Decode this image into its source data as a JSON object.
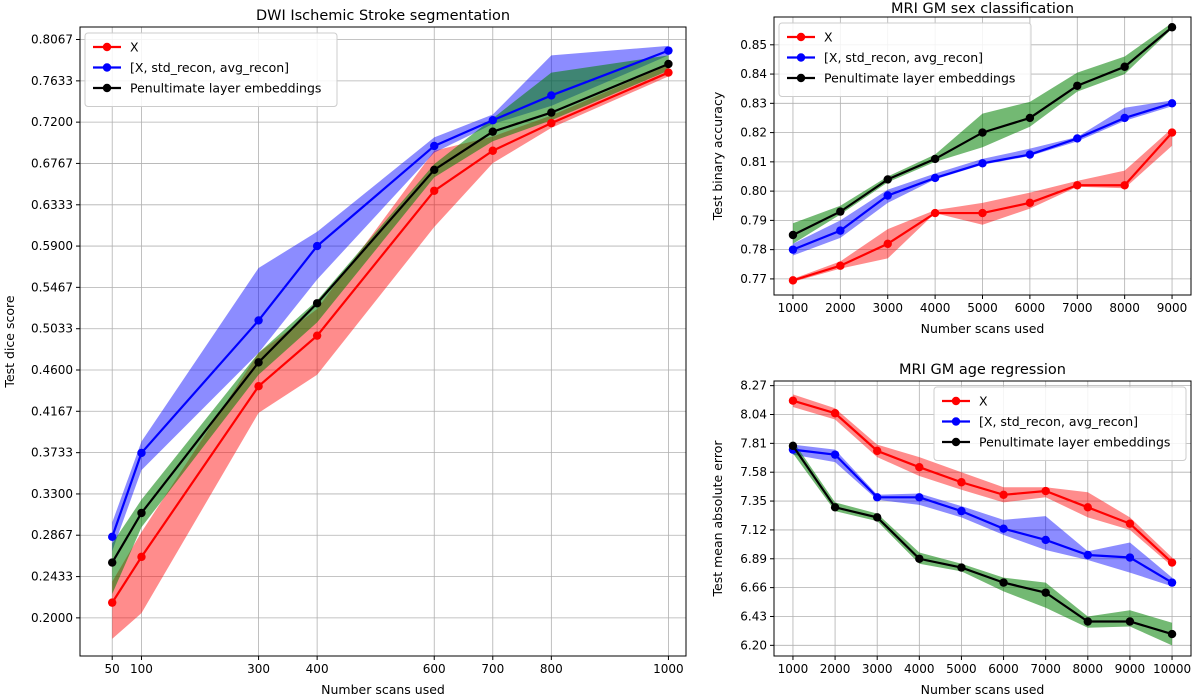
{
  "chart_data": [
    {
      "type": "line",
      "title": "DWI Ischemic Stroke segmentation",
      "xlabel": "Number scans used",
      "ylabel": "Test dice score",
      "x": [
        50,
        100,
        300,
        400,
        600,
        700,
        800,
        1000
      ],
      "xticks": [
        "50",
        "100",
        "300",
        "400",
        "600",
        "700",
        "800",
        "1000"
      ],
      "yticks": [
        "0.2000",
        "0.2433",
        "0.2867",
        "0.3300",
        "0.3733",
        "0.4167",
        "0.4600",
        "0.5033",
        "0.5467",
        "0.5900",
        "0.6333",
        "0.6767",
        "0.7200",
        "0.7633",
        "0.8067"
      ],
      "xlim": [
        -5,
        1030
      ],
      "ylim": [
        0.16,
        0.8198
      ],
      "grid": true,
      "legend_position": "top-left",
      "series": [
        {
          "name": "X",
          "color": "#ff0000",
          "values": [
            0.216,
            0.264,
            0.443,
            0.496,
            0.648,
            0.69,
            0.719,
            0.772
          ],
          "lower": [
            0.178,
            0.205,
            0.415,
            0.455,
            0.61,
            0.677,
            0.714,
            0.768
          ],
          "upper": [
            0.238,
            0.29,
            0.478,
            0.524,
            0.69,
            0.705,
            0.727,
            0.78
          ]
        },
        {
          "name": "[X, std_recon, avg_recon]",
          "color": "#0000ff",
          "values": [
            0.285,
            0.373,
            0.512,
            0.59,
            0.695,
            0.722,
            0.748,
            0.795
          ],
          "lower": [
            0.27,
            0.355,
            0.478,
            0.555,
            0.688,
            0.718,
            0.737,
            0.79
          ],
          "upper": [
            0.3,
            0.385,
            0.567,
            0.605,
            0.704,
            0.728,
            0.79,
            0.8
          ]
        },
        {
          "name": "Penultimate layer embeddings",
          "color": "#000000",
          "values": [
            0.258,
            0.31,
            0.468,
            0.53,
            0.67,
            0.71,
            0.73,
            0.781
          ],
          "lower": [
            0.225,
            0.295,
            0.455,
            0.51,
            0.662,
            0.7,
            0.722,
            0.774
          ],
          "upper": [
            0.278,
            0.324,
            0.478,
            0.533,
            0.676,
            0.724,
            0.772,
            0.79
          ]
        }
      ]
    },
    {
      "type": "line",
      "title": "MRI GM sex classification",
      "xlabel": "Number scans used",
      "ylabel": "Test binary accuracy",
      "x": [
        1000,
        2000,
        3000,
        4000,
        5000,
        6000,
        7000,
        8000,
        9000
      ],
      "xticks": [
        "1000",
        "2000",
        "3000",
        "4000",
        "5000",
        "6000",
        "7000",
        "8000",
        "9000"
      ],
      "yticks": [
        "0.77",
        "0.78",
        "0.79",
        "0.80",
        "0.81",
        "0.82",
        "0.83",
        "0.84",
        "0.85"
      ],
      "xlim": [
        600,
        9400
      ],
      "ylim": [
        0.7645,
        0.8595
      ],
      "grid": true,
      "legend_position": "top-left",
      "series": [
        {
          "name": "X",
          "color": "#ff0000",
          "values": [
            0.7695,
            0.7745,
            0.782,
            0.7925,
            0.7925,
            0.796,
            0.802,
            0.802,
            0.82
          ],
          "lower": [
            0.769,
            0.7735,
            0.777,
            0.7925,
            0.7885,
            0.794,
            0.8015,
            0.801,
            0.8155
          ],
          "upper": [
            0.77,
            0.776,
            0.787,
            0.7935,
            0.796,
            0.7995,
            0.8035,
            0.807,
            0.8215
          ]
        },
        {
          "name": "[X, std_recon, avg_recon]",
          "color": "#0000ff",
          "values": [
            0.78,
            0.7865,
            0.7985,
            0.8045,
            0.8095,
            0.8125,
            0.818,
            0.825,
            0.83
          ],
          "lower": [
            0.778,
            0.784,
            0.796,
            0.804,
            0.809,
            0.812,
            0.817,
            0.824,
            0.829
          ],
          "upper": [
            0.782,
            0.79,
            0.8005,
            0.806,
            0.811,
            0.8145,
            0.8185,
            0.8285,
            0.831
          ]
        },
        {
          "name": "Penultimate layer embeddings",
          "color": "#000000",
          "values": [
            0.785,
            0.793,
            0.804,
            0.811,
            0.82,
            0.825,
            0.836,
            0.8425,
            0.856
          ],
          "lower": [
            0.782,
            0.792,
            0.803,
            0.81,
            0.815,
            0.822,
            0.834,
            0.84,
            0.8555
          ],
          "upper": [
            0.789,
            0.795,
            0.805,
            0.8125,
            0.8265,
            0.8305,
            0.8405,
            0.846,
            0.8575
          ]
        }
      ]
    },
    {
      "type": "line",
      "title": "MRI GM age regression",
      "xlabel": "Number scans used",
      "ylabel": "Test mean absolute error",
      "x": [
        1000,
        2000,
        3000,
        4000,
        5000,
        6000,
        7000,
        8000,
        9000,
        10000
      ],
      "xticks": [
        "1000",
        "2000",
        "3000",
        "4000",
        "5000",
        "6000",
        "7000",
        "8000",
        "9000",
        "10000"
      ],
      "yticks": [
        "6.20",
        "6.43",
        "6.66",
        "6.89",
        "7.12",
        "7.35",
        "7.58",
        "7.81",
        "8.04",
        "8.27"
      ],
      "xlim": [
        550,
        10450
      ],
      "ylim": [
        6.115,
        8.307
      ],
      "grid": true,
      "legend_position": "top-right",
      "series": [
        {
          "name": "X",
          "color": "#ff0000",
          "values": [
            8.15,
            8.05,
            7.75,
            7.62,
            7.5,
            7.4,
            7.43,
            7.3,
            7.17,
            6.86
          ],
          "lower": [
            8.1,
            8.0,
            7.7,
            7.55,
            7.44,
            7.34,
            7.38,
            7.22,
            7.12,
            6.83
          ],
          "upper": [
            8.2,
            8.09,
            7.8,
            7.7,
            7.58,
            7.46,
            7.46,
            7.42,
            7.22,
            6.9
          ]
        },
        {
          "name": "[X, std_recon, avg_recon]",
          "color": "#0000ff",
          "values": [
            7.76,
            7.72,
            7.38,
            7.38,
            7.27,
            7.13,
            7.04,
            6.92,
            6.9,
            6.7
          ],
          "lower": [
            7.72,
            7.66,
            7.36,
            7.32,
            7.22,
            7.08,
            6.96,
            6.88,
            6.78,
            6.67
          ],
          "upper": [
            7.8,
            7.76,
            7.4,
            7.41,
            7.31,
            7.2,
            7.23,
            6.95,
            7.02,
            6.74
          ]
        },
        {
          "name": "Penultimate layer embeddings",
          "color": "#000000",
          "values": [
            7.79,
            7.3,
            7.22,
            6.89,
            6.82,
            6.7,
            6.62,
            6.39,
            6.39,
            6.29
          ],
          "lower": [
            7.73,
            7.27,
            7.19,
            6.85,
            6.79,
            6.63,
            6.5,
            6.34,
            6.35,
            6.2
          ],
          "upper": [
            7.83,
            7.34,
            7.25,
            6.94,
            6.85,
            6.74,
            6.7,
            6.43,
            6.48,
            6.38
          ]
        }
      ]
    }
  ]
}
